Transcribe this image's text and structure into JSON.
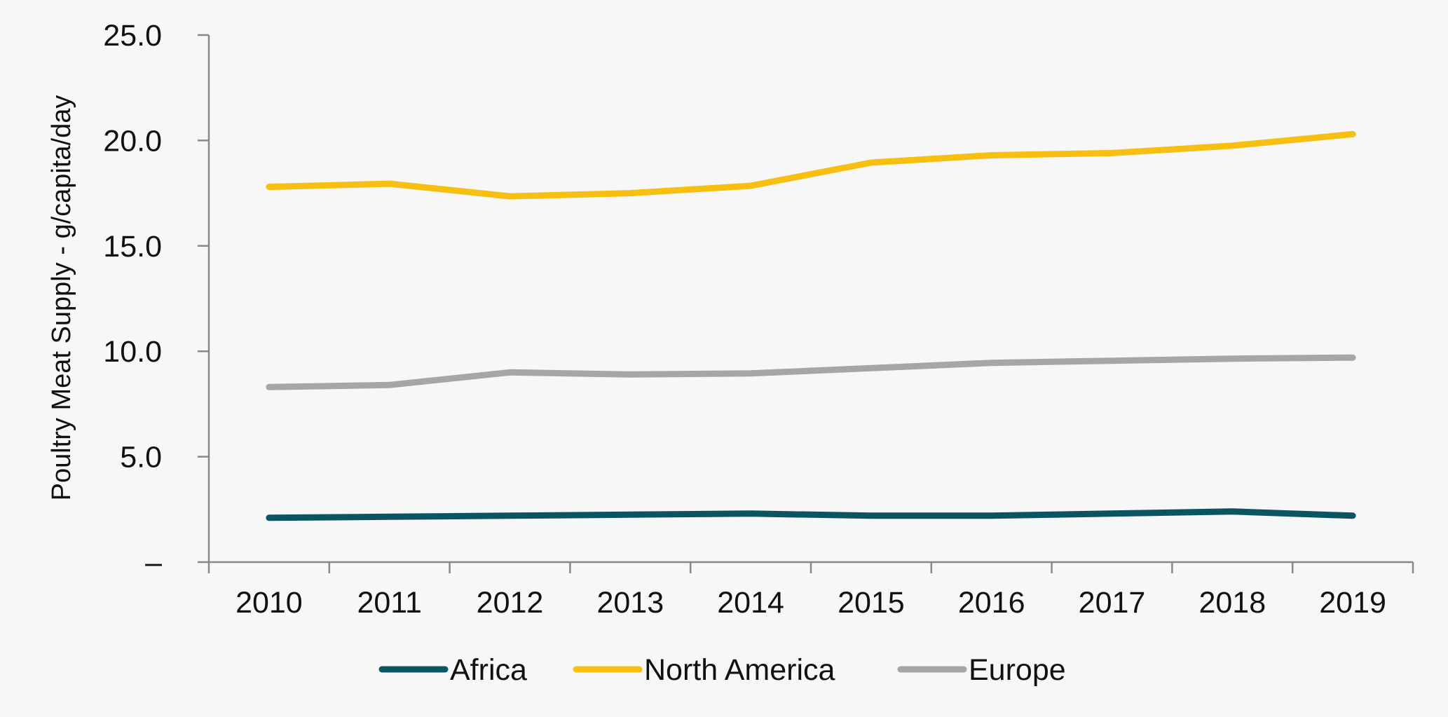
{
  "chart_data": {
    "type": "line",
    "title": "",
    "xlabel": "",
    "ylabel": "Poultry Meat Supply - g/capita/day",
    "categories": [
      "2010",
      "2011",
      "2012",
      "2013",
      "2014",
      "2015",
      "2016",
      "2017",
      "2018",
      "2019"
    ],
    "ylim": [
      0,
      25
    ],
    "yticks": [
      {
        "value": 0,
        "label": "–"
      },
      {
        "value": 5,
        "label": "5.0"
      },
      {
        "value": 10,
        "label": "10.0"
      },
      {
        "value": 15,
        "label": "15.0"
      },
      {
        "value": 20,
        "label": "20.0"
      },
      {
        "value": 25,
        "label": "25.0"
      }
    ],
    "grid": false,
    "legend": "bottom",
    "series": [
      {
        "name": "Africa",
        "color": "#0b5563",
        "values": [
          2.1,
          2.15,
          2.2,
          2.25,
          2.3,
          2.2,
          2.2,
          2.3,
          2.4,
          2.2
        ]
      },
      {
        "name": "North America",
        "color": "#f6bf12",
        "values": [
          17.8,
          17.95,
          17.35,
          17.5,
          17.85,
          18.95,
          19.3,
          19.4,
          19.75,
          20.3
        ]
      },
      {
        "name": "Europe",
        "color": "#a6a6a6",
        "values": [
          8.3,
          8.4,
          9.0,
          8.9,
          8.95,
          9.2,
          9.45,
          9.55,
          9.65,
          9.7
        ]
      }
    ]
  }
}
